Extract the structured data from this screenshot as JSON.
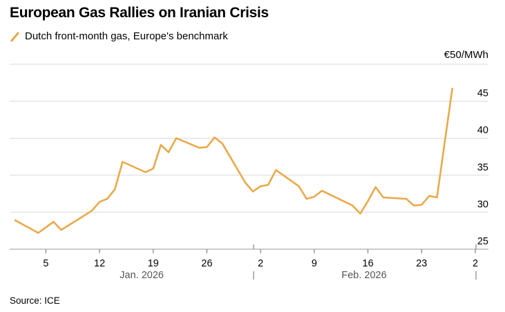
{
  "title": "European Gas Rallies on Iranian Crisis",
  "legend": {
    "label": "Dutch front-month gas, Europe's benchmark",
    "color": "#e9a94a"
  },
  "source": "Source: ICE",
  "chart_data": {
    "type": "line",
    "title": "European Gas Rallies on Iranian Crisis",
    "unit_label": "€50/MWh",
    "ylim": [
      25,
      50
    ],
    "y_ticks": [
      25,
      30,
      35,
      40,
      45
    ],
    "y_tick_labels": [
      "25",
      "30",
      "35",
      "40",
      "45"
    ],
    "grid": true,
    "x_ticks": [
      {
        "day": 4,
        "label": "5"
      },
      {
        "day": 11,
        "label": "12"
      },
      {
        "day": 18,
        "label": "19"
      },
      {
        "day": 25,
        "label": "26"
      },
      {
        "day": 32,
        "label": "2"
      },
      {
        "day": 39,
        "label": "9"
      },
      {
        "day": 46,
        "label": "16"
      },
      {
        "day": 53,
        "label": "23"
      },
      {
        "day": 60,
        "label": "2"
      }
    ],
    "month_labels": [
      {
        "center_day": 16.5,
        "label": "Jan. 2026"
      },
      {
        "center_day": 45.5,
        "label": "Feb. 2026"
      }
    ],
    "month_separators": [
      31,
      60
    ],
    "x_range": [
      -0.4,
      61.5
    ],
    "series": [
      {
        "name": "Dutch front-month gas, Europe's benchmark",
        "color": "#e9a94a",
        "points": [
          [
            0,
            28.9
          ],
          [
            3,
            27.2
          ],
          [
            5,
            28.7
          ],
          [
            6,
            27.6
          ],
          [
            10,
            30.2
          ],
          [
            11,
            31.4
          ],
          [
            12,
            31.8
          ],
          [
            13,
            33.1
          ],
          [
            14,
            36.8
          ],
          [
            17,
            35.4
          ],
          [
            18,
            35.9
          ],
          [
            19,
            39.1
          ],
          [
            20,
            38.1
          ],
          [
            21,
            40.0
          ],
          [
            24,
            38.7
          ],
          [
            25,
            38.8
          ],
          [
            26,
            40.1
          ],
          [
            27,
            39.3
          ],
          [
            30,
            34.0
          ],
          [
            31,
            32.8
          ],
          [
            32,
            33.5
          ],
          [
            33,
            33.7
          ],
          [
            34,
            35.7
          ],
          [
            37,
            33.5
          ],
          [
            38,
            31.8
          ],
          [
            39,
            32.1
          ],
          [
            40,
            32.9
          ],
          [
            44,
            30.9
          ],
          [
            45,
            29.8
          ],
          [
            46,
            31.5
          ],
          [
            47,
            33.4
          ],
          [
            48,
            32.0
          ],
          [
            51,
            31.8
          ],
          [
            52,
            30.9
          ],
          [
            53,
            31.0
          ],
          [
            54,
            32.2
          ],
          [
            55,
            32.0
          ],
          [
            57,
            46.7
          ]
        ]
      }
    ]
  }
}
